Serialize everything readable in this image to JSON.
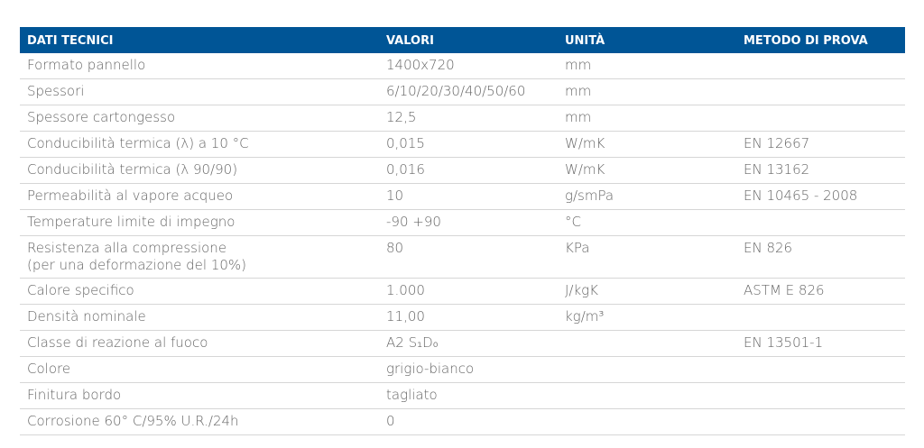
{
  "table": {
    "headers": [
      "DATI TECNICI",
      "VALORI",
      "UNITÀ",
      "METODO DI PROVA"
    ],
    "rows": [
      [
        "Formato pannello",
        "1400x720",
        "mm",
        ""
      ],
      [
        "Spessori",
        "6/10/20/30/40/50/60",
        "mm",
        ""
      ],
      [
        "Spessore cartongesso",
        "12,5",
        "mm",
        ""
      ],
      [
        "Conducibilità termica (λ) a 10 °C",
        "0,015",
        "W/mK",
        "EN 12667"
      ],
      [
        "Conducibilità termica (λ 90/90)",
        "0,016",
        "W/mK",
        "EN 13162"
      ],
      [
        "Permeabilità al vapore acqueo",
        "10",
        "g/smPa",
        "EN 10465 - 2008"
      ],
      [
        "Temperature limite di impegno",
        "-90 +90",
        "°C",
        ""
      ],
      [
        "Resistenza alla compressione\n(per una deformazione del 10%)",
        "80",
        "KPa",
        "EN 826"
      ],
      [
        "Calore specifico",
        "1.000",
        "J/kgK",
        "ASTM E 826"
      ],
      [
        "Densità nominale",
        "11,00",
        "kg/m³",
        ""
      ],
      [
        "Classe di reazione al fuoco",
        "A2 S₁D₀",
        "",
        "EN 13501-1"
      ],
      [
        "Colore",
        "grigio-bianco",
        "",
        ""
      ],
      [
        "Finitura bordo",
        "tagliato",
        "",
        ""
      ],
      [
        "Corrosione 60° C/95% U.R./24h",
        "0",
        "",
        ""
      ]
    ]
  },
  "colors": {
    "header": "#005596"
  }
}
